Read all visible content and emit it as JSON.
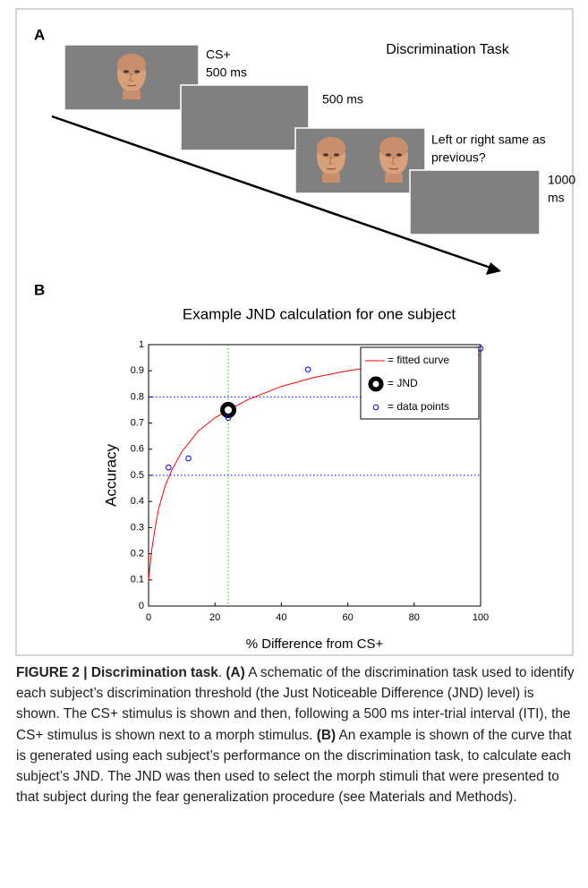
{
  "panel_a": {
    "label": "A",
    "title": "Discrimination Task",
    "frames": [
      {
        "lines": [
          "CS+",
          "500 ms"
        ]
      },
      {
        "lines": [
          "500 ms"
        ]
      },
      {
        "lines": [
          "Left or right same as",
          "previous?"
        ]
      },
      {
        "lines": [
          "1000",
          "ms"
        ]
      }
    ]
  },
  "panel_b_label": "B",
  "chart_data": {
    "type": "scatter",
    "title": "Example JND calculation for one subject",
    "x_label": "% Difference from CS+",
    "y_label": "Accuracy",
    "xlim": [
      0,
      100
    ],
    "ylim": [
      0,
      1
    ],
    "xticks": [
      0,
      20,
      40,
      60,
      80,
      100
    ],
    "yticks": [
      0,
      0.1,
      0.2,
      0.3,
      0.4,
      0.5,
      0.6,
      0.7,
      0.8,
      0.9,
      1
    ],
    "legend": "upper right",
    "reference_lines": {
      "y": [
        0.8,
        0.5
      ],
      "y_color": "#0000ff",
      "x": [
        24
      ],
      "x_color": "#00cc00"
    },
    "series": [
      {
        "name": "= fitted curve",
        "type": "line",
        "color": "#ff0000",
        "x": [
          0,
          1,
          2,
          3,
          5,
          7,
          10,
          15,
          20,
          24,
          30,
          40,
          50,
          60,
          70,
          80,
          90,
          100
        ],
        "values": [
          0.1,
          0.22,
          0.3,
          0.37,
          0.46,
          0.52,
          0.59,
          0.67,
          0.72,
          0.75,
          0.79,
          0.84,
          0.875,
          0.9,
          0.92,
          0.935,
          0.95,
          0.96
        ]
      },
      {
        "name": "= JND",
        "type": "jnd",
        "color": "#000000",
        "x": [
          24
        ],
        "values": [
          0.75
        ]
      },
      {
        "name": "= data points",
        "type": "scatter",
        "color": "#0000ff",
        "x": [
          6,
          12,
          24,
          48,
          100
        ],
        "values": [
          0.53,
          0.565,
          0.72,
          0.905,
          0.985
        ]
      }
    ]
  },
  "caption": {
    "runs": [
      {
        "text": "FIGURE 2 | Discrimination task",
        "bold": true
      },
      {
        "text": ". ",
        "bold": false
      },
      {
        "text": "(A)",
        "bold": true
      },
      {
        "text": " A schematic of the discrimination task used to identify each subject’s discrimination threshold (the Just Noticeable Difference (JND) level) is shown. The CS+ stimulus is shown and then, following a 500 ms inter-trial interval (ITI), the CS+ stimulus is shown next to a morph stimulus. ",
        "bold": false
      },
      {
        "text": "(B)",
        "bold": true
      },
      {
        "text": " An example is shown of the curve that is generated using each subject’s performance on the discrimination task, to calculate each subject’s JND. The JND was then used to select the morph stimuli that were presented to that subject during the fear generalization procedure (see Materials and Methods).",
        "bold": false
      }
    ]
  }
}
